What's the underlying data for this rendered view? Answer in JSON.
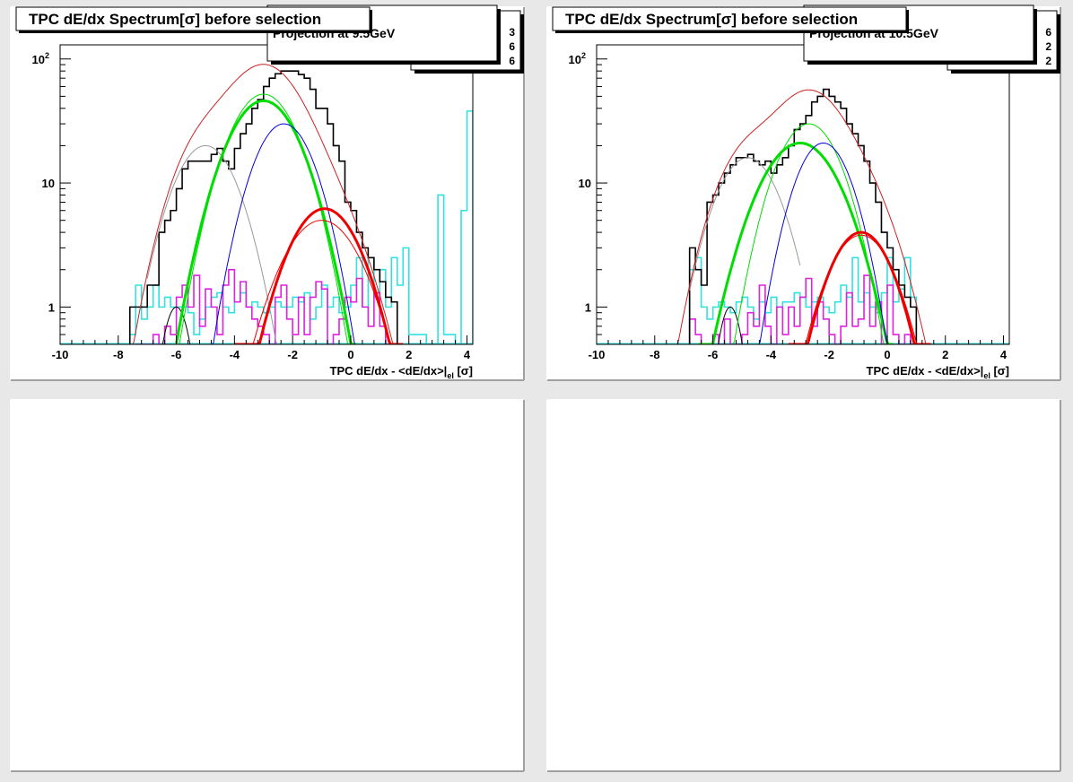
{
  "chart_data": [
    {
      "type": "histogram-fit",
      "title": "TPC dE/dx Spectrum[σ] before selection",
      "annotation": "Projection at 9.5GeV",
      "stats_box_digits": [
        "3",
        "6",
        "6"
      ],
      "xlabel_parts": [
        "TPC dE/dx - <dE/dx>|",
        "el",
        " [σ]"
      ],
      "xlim": [
        -10,
        4.2
      ],
      "ylim": [
        0.5,
        130
      ],
      "log_y": true,
      "x_ticks": [
        -10,
        -8,
        -6,
        -4,
        -2,
        0,
        2,
        4
      ],
      "y_ticks": [
        {
          "value": 1,
          "label": "1"
        },
        {
          "value": 10,
          "label": "10"
        },
        {
          "value": 100,
          "label": "10",
          "sup": "2"
        }
      ],
      "hist_bin_width": 0.2,
      "hist_start": -7.6,
      "hist_black": [
        1,
        1,
        1,
        1.5,
        1.5,
        4,
        5,
        6,
        9,
        13,
        15,
        15,
        15,
        15,
        17,
        19,
        15,
        13,
        19,
        25,
        30,
        40,
        47,
        60,
        70,
        76,
        80,
        80,
        80,
        75,
        70,
        57,
        40,
        40,
        30,
        20,
        15,
        7,
        6,
        4,
        3,
        2.5,
        2,
        1.6,
        1.2,
        1.1
      ],
      "hist_cyan_start": -7.6,
      "hist_cyan": [
        0.6,
        1.5,
        0.8,
        1,
        1.5,
        1,
        1.2,
        1,
        1,
        1,
        0.9,
        0.6,
        0.8,
        1,
        1.2,
        1.3,
        1,
        0.9,
        1.1,
        1.3,
        1,
        1.1,
        1,
        0.9,
        1,
        1.1,
        1,
        1,
        1.2,
        1.1,
        1.3,
        0.8,
        1,
        1.5,
        1,
        1.2,
        0.9,
        1,
        1.5,
        2.5,
        1,
        2.5,
        1.2,
        2,
        1,
        2.5,
        1.5,
        3,
        0.6,
        0.6,
        0.6,
        0.5,
        0.5,
        8,
        0.6,
        0.6,
        0.5,
        6,
        38
      ],
      "hist_magenta_start": -7.4,
      "hist_magenta": [
        0.5,
        0.5,
        0.5,
        0.6,
        0.5,
        0.7,
        0.6,
        1.2,
        1.5,
        1,
        1.8,
        0.7,
        1.4,
        1,
        0.6,
        1.5,
        2,
        1.1,
        1.6,
        1,
        0.8,
        0.7,
        0.6,
        0.5,
        1.2,
        1.5,
        0.8,
        0.6,
        1.2,
        0.6,
        1.2,
        1.6,
        1.4,
        0.5,
        0.6,
        0.8,
        1.2,
        1.1,
        1.7,
        1,
        0.7,
        1.3,
        0.7,
        0.5
      ],
      "fit_center": {
        "mu": -2.9,
        "sigma": 1.25,
        "a": 80
      },
      "curves": [
        {
          "name": "black",
          "color": "#000000",
          "w": 1,
          "mu": -6,
          "sigma": 0.4,
          "a": 1.0,
          "range": [
            -6.7,
            -5.3
          ]
        },
        {
          "name": "gray",
          "color": "#999999",
          "w": 1,
          "mu": -5.0,
          "sigma": 0.9,
          "a": 20,
          "range": [
            -7,
            -2.5
          ]
        },
        {
          "name": "green-thick",
          "color": "#00dd00",
          "w": 3,
          "mu": -3.0,
          "sigma": 1.0,
          "a": 46,
          "range": [
            -6,
            0.2
          ]
        },
        {
          "name": "green-thin",
          "color": "#00dd00",
          "w": 1,
          "mu": -3.0,
          "sigma": 0.95,
          "a": 52,
          "range": [
            -6,
            0.2
          ]
        },
        {
          "name": "blue",
          "color": "#0000dd",
          "w": 1,
          "mu": -2.3,
          "sigma": 0.85,
          "a": 30,
          "range": [
            -5,
            0.5
          ]
        },
        {
          "name": "red-thick",
          "color": "#ee0000",
          "w": 3,
          "mu": -0.9,
          "sigma": 1.0,
          "a": 6.2,
          "range": [
            -4,
            1.8
          ]
        },
        {
          "name": "red-thin",
          "color": "#ee0000",
          "w": 1,
          "mu": -1.0,
          "sigma": 1.1,
          "a": 5.0,
          "range": [
            -4,
            1.8
          ]
        }
      ]
    },
    {
      "type": "histogram-fit",
      "title": "TPC dE/dx Spectrum[σ] before selection",
      "annotation": "Projection at 10.5GeV",
      "stats_box_digits": [
        "6",
        "2",
        "2"
      ],
      "xlabel_parts": [
        "TPC dE/dx - <dE/dx>|",
        "el",
        " [σ]"
      ],
      "xlim": [
        -10,
        4.2
      ],
      "ylim": [
        0.5,
        130
      ],
      "log_y": true,
      "x_ticks": [
        -10,
        -8,
        -6,
        -4,
        -2,
        0,
        2,
        4
      ],
      "y_ticks": [
        {
          "value": 1,
          "label": "1"
        },
        {
          "value": 10,
          "label": "10"
        },
        {
          "value": 100,
          "label": "10",
          "sup": "2"
        }
      ],
      "hist_bin_width": 0.2,
      "hist_start": -6.8,
      "hist_black": [
        3,
        2,
        1.5,
        7,
        8,
        10,
        12,
        14,
        16,
        16,
        17,
        15,
        14,
        15,
        12,
        14,
        16,
        20,
        27,
        30,
        35,
        45,
        50,
        57,
        50,
        45,
        40,
        30,
        25,
        20,
        15,
        10,
        7,
        4,
        3,
        2,
        1.5,
        1.2,
        1
      ],
      "hist_cyan_start": -6.8,
      "hist_cyan": [
        2,
        2.5,
        1,
        0.8,
        1,
        1.1,
        1,
        0.9,
        1.1,
        1.2,
        1,
        0.8,
        1.1,
        0.9,
        1.2,
        1,
        1.1,
        1.1,
        1.3,
        1.2,
        1,
        1.1,
        1.2,
        1,
        0.9,
        1.1,
        1.5,
        1.2,
        2.5,
        1.1,
        1.3,
        1,
        0.9,
        1.3,
        2.5,
        1.1,
        1.4,
        2.5,
        1.2
      ],
      "hist_magenta_start": -6.8,
      "hist_magenta": [
        0.8,
        0.6,
        0.5,
        0.5,
        0.6,
        0.5,
        0.8,
        0.5,
        0.5,
        0.6,
        0.9,
        0.7,
        1.5,
        0.7,
        0.5,
        1,
        0.6,
        1,
        0.7,
        1.2,
        1.7,
        0.7,
        1.1,
        0.8,
        0.6,
        0.5,
        0.7,
        1.3,
        0.7,
        0.8,
        1.8,
        0.7,
        1.1,
        0.5,
        1.5,
        0.6,
        0.5,
        0.6,
        0.5
      ],
      "fit_center": {
        "mu": -2.6,
        "sigma": 1.3,
        "a": 55
      },
      "curves": [
        {
          "name": "black",
          "color": "#000000",
          "w": 1,
          "mu": -5.4,
          "sigma": 0.35,
          "a": 1.0,
          "range": [
            -6.1,
            -4.8
          ]
        },
        {
          "name": "gray",
          "color": "#999999",
          "w": 1,
          "mu": -4.8,
          "sigma": 0.9,
          "a": 16,
          "range": [
            -6.8,
            -3
          ]
        },
        {
          "name": "green-thick",
          "color": "#00dd00",
          "w": 3,
          "mu": -3.0,
          "sigma": 1.1,
          "a": 21,
          "range": [
            -6.5,
            0.2
          ]
        },
        {
          "name": "green-thin",
          "color": "#00dd00",
          "w": 1,
          "mu": -2.7,
          "sigma": 0.9,
          "a": 30,
          "range": [
            -5.5,
            0.3
          ]
        },
        {
          "name": "blue",
          "color": "#0000dd",
          "w": 1,
          "mu": -2.2,
          "sigma": 0.8,
          "a": 21,
          "range": [
            -4.8,
            0.3
          ]
        },
        {
          "name": "red-thick",
          "color": "#ee0000",
          "w": 3,
          "mu": -0.9,
          "sigma": 0.9,
          "a": 4.0,
          "range": [
            -3.4,
            1.5
          ]
        },
        {
          "name": "red-thin",
          "color": "#ee0000",
          "w": 1,
          "mu": -0.9,
          "sigma": 0.95,
          "a": 3.8,
          "range": [
            -3.4,
            1.5
          ]
        }
      ]
    }
  ]
}
